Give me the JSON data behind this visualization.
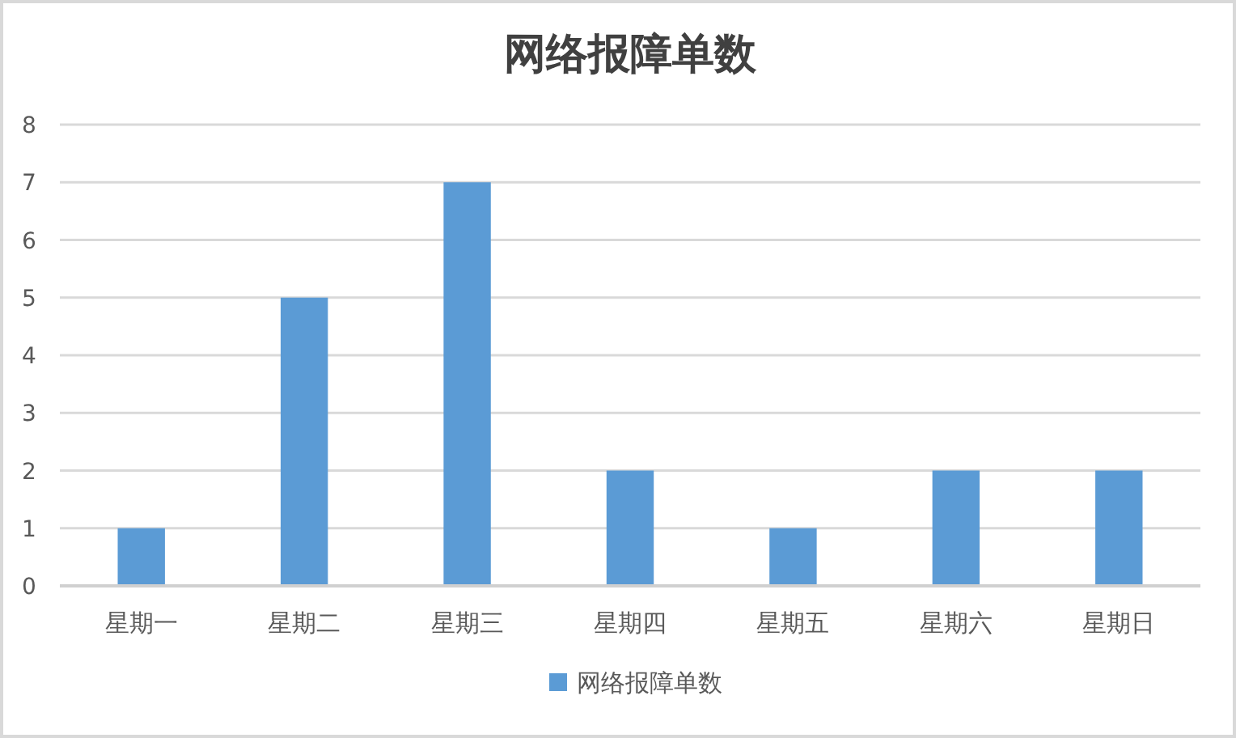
{
  "chart_data": {
    "type": "bar",
    "title": "网络报障单数",
    "categories": [
      "星期一",
      "星期二",
      "星期三",
      "星期四",
      "星期五",
      "星期六",
      "星期日"
    ],
    "series": [
      {
        "name": "网络报障单数",
        "color": "#5b9bd5",
        "values": [
          1,
          5,
          7,
          2,
          1,
          2,
          2
        ]
      }
    ],
    "ylim": [
      0,
      8
    ],
    "yticks": [
      0,
      1,
      2,
      3,
      4,
      5,
      6,
      7,
      8
    ],
    "grid": "y",
    "legend": "bottom"
  }
}
